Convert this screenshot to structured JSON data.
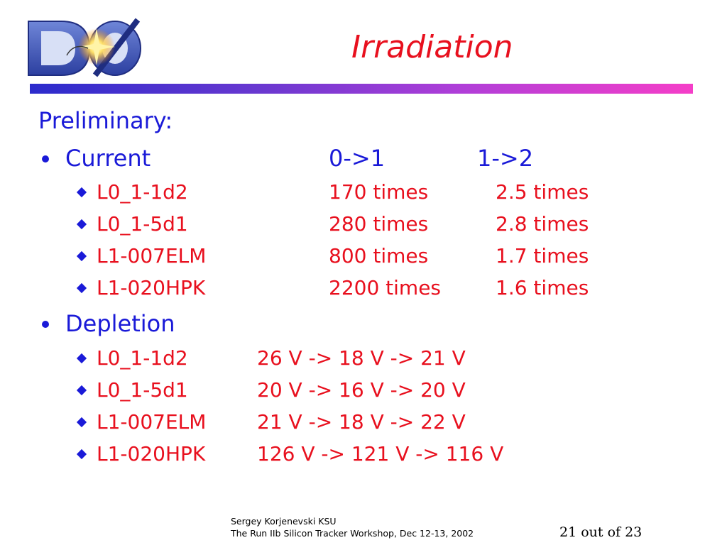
{
  "header": {
    "logo_text": "DØ",
    "title": "Irradiation"
  },
  "body": {
    "heading": "Preliminary:",
    "current": {
      "label": "Current",
      "col1_header": "0->1",
      "col2_header": "1->2",
      "rows": [
        {
          "name": "L0_1-1d2",
          "v01": "170 times",
          "v12": "2.5 times"
        },
        {
          "name": "L0_1-5d1",
          "v01": "280 times",
          "v12": "2.8 times"
        },
        {
          "name": "L1-007ELM",
          "v01": "800 times",
          "v12": "1.7 times"
        },
        {
          "name": "L1-020HPK",
          "v01": "2200 times",
          "v12": "1.6 times"
        }
      ]
    },
    "depletion": {
      "label": "Depletion",
      "rows": [
        {
          "name": "L0_1-1d2",
          "value": "26 V -> 18 V -> 21 V"
        },
        {
          "name": "L0_1-5d1",
          "value": "20 V -> 16 V -> 20 V"
        },
        {
          "name": "L1-007ELM",
          "value": "21 V -> 18 V -> 22 V"
        },
        {
          "name": "L1-020HPK",
          "value": "126 V -> 121 V -> 116 V"
        }
      ]
    }
  },
  "footer": {
    "author": "Sergey Korjenevski KSU",
    "event": "The Run IIb Silicon Tracker Workshop,  Dec 12-13, 2002",
    "page": "21 out of 23"
  },
  "colors": {
    "title": "#e8101e",
    "text_blue": "#1a1ad8",
    "text_red": "#e8101e",
    "rule_start": "#2b2bcc",
    "rule_end": "#f53ec8"
  },
  "icons": [
    "d0-logo-icon",
    "bullet-dot-icon",
    "diamond-bullet-icon"
  ]
}
